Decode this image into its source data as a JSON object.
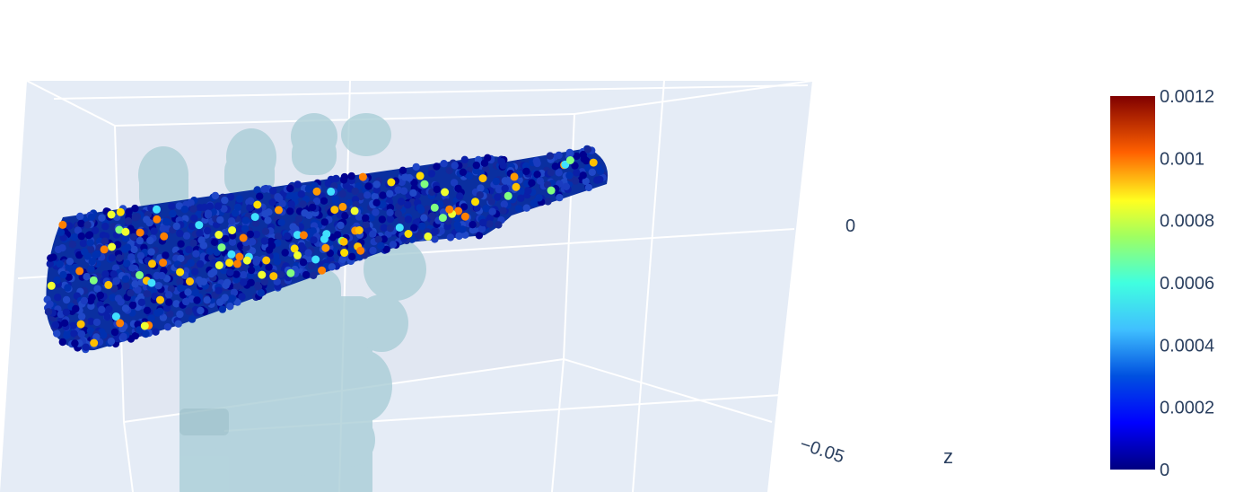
{
  "chart_data": {
    "type": "scatter3d",
    "title": "",
    "scene": {
      "background": "#e5ecf6",
      "grid_color": "#ffffff",
      "z_axis": {
        "title": "z",
        "tick_labels": [
          "0",
          "−0.05"
        ],
        "tick_values": [
          0,
          -0.05
        ]
      }
    },
    "colorbar": {
      "colorscale": "Jet",
      "range": [
        0,
        0.0012
      ],
      "tick_labels": [
        "0",
        "0.0002",
        "0.0004",
        "0.0006",
        "0.0008",
        "0.001",
        "0.0012"
      ],
      "tick_values": [
        0,
        0.0002,
        0.0004,
        0.0006,
        0.0008,
        0.001,
        0.0012
      ]
    },
    "series": [
      {
        "kind": "point-cloud",
        "marker": "circle",
        "value_distribution": "mostly near 0.0001, sparse points up to 0.0009"
      },
      {
        "kind": "mesh",
        "color": "#a8cdd6",
        "opacity": 0.75
      }
    ]
  }
}
